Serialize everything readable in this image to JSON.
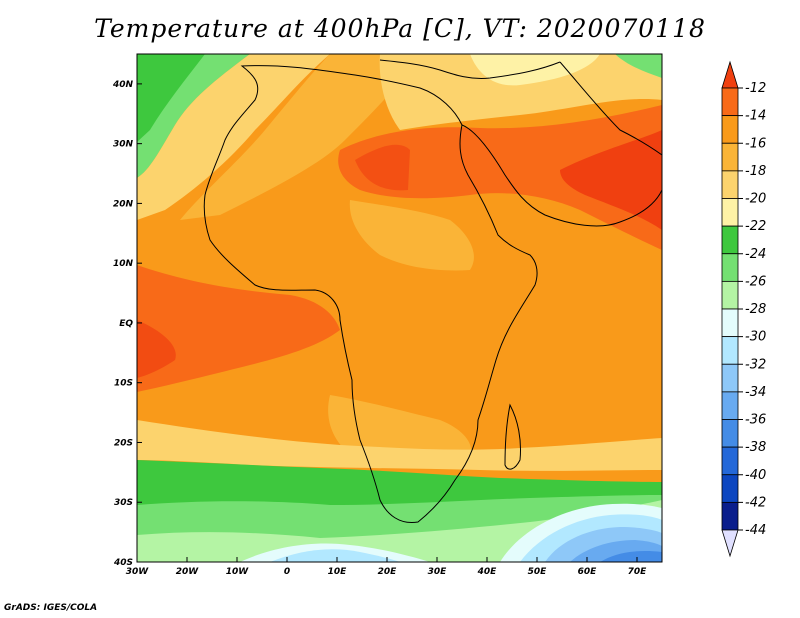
{
  "title": "Temperature at 400hPa [C], VT: 2020070118",
  "credit": "GrADS: IGES/COLA",
  "map": {
    "lon_range": [
      -30,
      75
    ],
    "lat_range": [
      -40,
      45
    ],
    "lon_ticks": [
      {
        "value": -30,
        "label": "30W"
      },
      {
        "value": -20,
        "label": "20W"
      },
      {
        "value": -10,
        "label": "10W"
      },
      {
        "value": 0,
        "label": "0"
      },
      {
        "value": 10,
        "label": "10E"
      },
      {
        "value": 20,
        "label": "20E"
      },
      {
        "value": 30,
        "label": "30E"
      },
      {
        "value": 40,
        "label": "40E"
      },
      {
        "value": 50,
        "label": "50E"
      },
      {
        "value": 60,
        "label": "60E"
      },
      {
        "value": 70,
        "label": "70E"
      }
    ],
    "lat_ticks": [
      {
        "value": 40,
        "label": "40N"
      },
      {
        "value": 30,
        "label": "30N"
      },
      {
        "value": 20,
        "label": "20N"
      },
      {
        "value": 10,
        "label": "10N"
      },
      {
        "value": 0,
        "label": "EQ"
      },
      {
        "value": -10,
        "label": "10S"
      },
      {
        "value": -20,
        "label": "20S"
      },
      {
        "value": -30,
        "label": "30S"
      },
      {
        "value": -40,
        "label": "40S"
      }
    ]
  },
  "colorbar": {
    "levels": [
      "-12",
      "-14",
      "-16",
      "-18",
      "-20",
      "-22",
      "-24",
      "-26",
      "-28",
      "-30",
      "-32",
      "-34",
      "-36",
      "-38",
      "-40",
      "-42",
      "-44"
    ],
    "colors": [
      "#f04010",
      "#f86a18",
      "#f99a1a",
      "#fab437",
      "#fcd36d",
      "#fef2a6",
      "#3ec83e",
      "#74e072",
      "#b4f4a4",
      "#e4fcfc",
      "#b2e8ff",
      "#8ec8f8",
      "#68aaf0",
      "#448ce6",
      "#2468d8",
      "#0c46c0",
      "#0a1e8c",
      "#e0e0ff"
    ]
  }
}
